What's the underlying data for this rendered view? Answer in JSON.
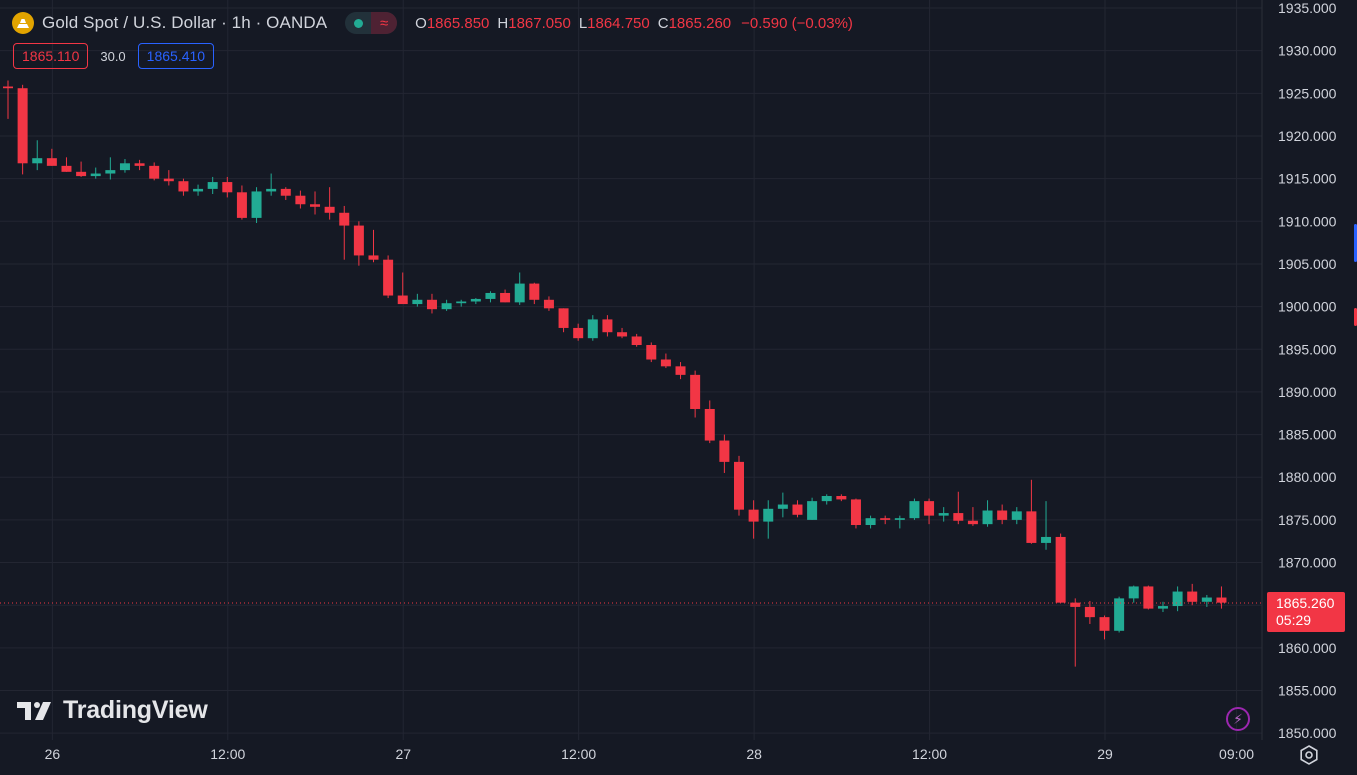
{
  "header": {
    "symbol_title": "Gold Spot / U.S. Dollar · 1h · OANDA",
    "ohlc": [
      {
        "key": "O",
        "value": "1865.850"
      },
      {
        "key": "H",
        "value": "1867.050"
      },
      {
        "key": "L",
        "value": "1864.750"
      },
      {
        "key": "C",
        "value": "1865.260"
      }
    ],
    "change": "−0.590 (−0.03%)",
    "wave_glyph": "≈"
  },
  "trade": {
    "sell_price": "1865.110",
    "spread": "30.0",
    "buy_price": "1865.410"
  },
  "last_price": {
    "price": "1865.260",
    "countdown": "05:29"
  },
  "watermark": {
    "text": "TradingView"
  },
  "colors": {
    "background": "#151924",
    "grid": "#232632",
    "up": "#22ab94",
    "down": "#f23645",
    "axis_text": "#d1d4dc",
    "buy": "#2962ff"
  },
  "icons": [
    "gold-coin-icon",
    "tradingview-logo-icon",
    "lightning-icon",
    "gear-icon"
  ],
  "chart_data": {
    "type": "candlestick",
    "x_labels": [
      {
        "label": "26",
        "index": 3
      },
      {
        "label": "12:00",
        "index": 15
      },
      {
        "label": "27",
        "index": 27
      },
      {
        "label": "12:00",
        "index": 39
      },
      {
        "label": "28",
        "index": 51
      },
      {
        "label": "12:00",
        "index": 63
      },
      {
        "label": "29",
        "index": 75
      },
      {
        "label": "09:00",
        "index": 84
      }
    ],
    "y_ticks": [
      "1850.000",
      "1855.000",
      "1860.000",
      "1865.000",
      "1870.000",
      "1875.000",
      "1880.000",
      "1885.000",
      "1890.000",
      "1895.000",
      "1900.000",
      "1905.000",
      "1910.000",
      "1915.000",
      "1920.000",
      "1925.000",
      "1930.000",
      "1935.000"
    ],
    "ylim": [
      1849,
      1936
    ],
    "grid": true,
    "candles": [
      [
        1925.8,
        1926.5,
        1922.0,
        1925.6
      ],
      [
        1925.6,
        1926.0,
        1915.5,
        1916.8
      ],
      [
        1916.8,
        1919.5,
        1916.0,
        1917.4
      ],
      [
        1917.4,
        1918.5,
        1916.5,
        1916.5
      ],
      [
        1916.5,
        1917.5,
        1915.8,
        1915.8
      ],
      [
        1915.8,
        1917.0,
        1915.2,
        1915.3
      ],
      [
        1915.3,
        1916.3,
        1915.0,
        1915.6
      ],
      [
        1915.6,
        1917.5,
        1914.9,
        1916.0
      ],
      [
        1916.0,
        1917.3,
        1915.7,
        1916.8
      ],
      [
        1916.8,
        1917.2,
        1916.0,
        1916.5
      ],
      [
        1916.5,
        1916.9,
        1914.8,
        1915.0
      ],
      [
        1915.0,
        1916.0,
        1914.2,
        1914.7
      ],
      [
        1914.7,
        1915.0,
        1913.0,
        1913.5
      ],
      [
        1913.5,
        1914.3,
        1913.0,
        1913.8
      ],
      [
        1913.8,
        1915.2,
        1913.2,
        1914.6
      ],
      [
        1914.6,
        1915.2,
        1912.8,
        1913.4
      ],
      [
        1913.4,
        1914.2,
        1910.2,
        1910.4
      ],
      [
        1910.4,
        1914.0,
        1909.8,
        1913.5
      ],
      [
        1913.5,
        1915.6,
        1913.0,
        1913.8
      ],
      [
        1913.8,
        1914.0,
        1912.5,
        1913.0
      ],
      [
        1913.0,
        1913.6,
        1911.5,
        1912.0
      ],
      [
        1912.0,
        1913.5,
        1910.8,
        1911.7
      ],
      [
        1911.7,
        1914.0,
        1910.2,
        1911.0
      ],
      [
        1911.0,
        1911.8,
        1905.5,
        1909.5
      ],
      [
        1909.5,
        1910.0,
        1904.8,
        1906.0
      ],
      [
        1906.0,
        1909.0,
        1905.2,
        1905.5
      ],
      [
        1905.5,
        1906.0,
        1901.0,
        1901.3
      ],
      [
        1901.3,
        1904.0,
        1900.8,
        1900.3
      ],
      [
        1900.3,
        1901.5,
        1900.0,
        1900.8
      ],
      [
        1900.8,
        1901.5,
        1899.2,
        1899.7
      ],
      [
        1899.7,
        1900.8,
        1899.5,
        1900.4
      ],
      [
        1900.4,
        1900.8,
        1900.0,
        1900.6
      ],
      [
        1900.6,
        1901.0,
        1900.3,
        1900.9
      ],
      [
        1900.9,
        1901.8,
        1900.5,
        1901.6
      ],
      [
        1901.6,
        1902.0,
        1900.5,
        1900.5
      ],
      [
        1900.5,
        1904.0,
        1900.2,
        1902.7
      ],
      [
        1902.7,
        1902.8,
        1900.3,
        1900.8
      ],
      [
        1900.8,
        1901.2,
        1899.5,
        1899.8
      ],
      [
        1899.8,
        1899.8,
        1897.0,
        1897.5
      ],
      [
        1897.5,
        1898.0,
        1896.0,
        1896.3
      ],
      [
        1896.3,
        1899.0,
        1896.0,
        1898.5
      ],
      [
        1898.5,
        1899.0,
        1896.5,
        1897.0
      ],
      [
        1897.0,
        1897.5,
        1896.3,
        1896.5
      ],
      [
        1896.5,
        1896.8,
        1895.3,
        1895.5
      ],
      [
        1895.5,
        1895.8,
        1893.5,
        1893.8
      ],
      [
        1893.8,
        1894.5,
        1892.8,
        1893.0
      ],
      [
        1893.0,
        1893.5,
        1891.5,
        1892.0
      ],
      [
        1892.0,
        1892.5,
        1887.0,
        1888.0
      ],
      [
        1888.0,
        1889.0,
        1884.0,
        1884.3
      ],
      [
        1884.3,
        1885.0,
        1880.5,
        1881.8
      ],
      [
        1881.8,
        1882.5,
        1875.5,
        1876.2
      ],
      [
        1876.2,
        1877.3,
        1872.8,
        1874.8
      ],
      [
        1874.8,
        1877.3,
        1872.8,
        1876.3
      ],
      [
        1876.3,
        1878.2,
        1875.3,
        1876.8
      ],
      [
        1876.8,
        1877.3,
        1875.3,
        1875.6
      ],
      [
        1875.0,
        1877.6,
        1875.0,
        1877.2
      ],
      [
        1877.2,
        1878.0,
        1876.8,
        1877.8
      ],
      [
        1877.8,
        1878.0,
        1877.2,
        1877.4
      ],
      [
        1877.4,
        1877.5,
        1874.0,
        1874.4
      ],
      [
        1874.4,
        1875.5,
        1874.0,
        1875.2
      ],
      [
        1875.2,
        1875.5,
        1874.5,
        1875.0
      ],
      [
        1875.0,
        1875.5,
        1874.0,
        1875.2
      ],
      [
        1875.2,
        1877.5,
        1875.0,
        1877.2
      ],
      [
        1877.2,
        1877.5,
        1874.5,
        1875.5
      ],
      [
        1875.5,
        1876.5,
        1874.8,
        1875.8
      ],
      [
        1875.8,
        1878.3,
        1874.5,
        1874.9
      ],
      [
        1874.9,
        1876.5,
        1874.3,
        1874.5
      ],
      [
        1874.5,
        1877.3,
        1874.2,
        1876.1
      ],
      [
        1876.1,
        1876.8,
        1874.5,
        1875.0
      ],
      [
        1875.0,
        1876.5,
        1874.5,
        1876.0
      ],
      [
        1876.0,
        1879.7,
        1872.2,
        1872.3
      ],
      [
        1872.3,
        1877.2,
        1871.5,
        1873.0
      ],
      [
        1873.0,
        1873.4,
        1865.3,
        1865.3
      ],
      [
        1865.3,
        1865.8,
        1857.8,
        1864.8
      ],
      [
        1864.8,
        1865.5,
        1862.8,
        1863.6
      ],
      [
        1863.6,
        1863.8,
        1861.0,
        1862.0
      ],
      [
        1862.0,
        1866.0,
        1861.8,
        1865.8
      ],
      [
        1865.8,
        1867.3,
        1865.3,
        1867.2
      ],
      [
        1867.2,
        1867.3,
        1864.5,
        1864.6
      ],
      [
        1864.6,
        1865.4,
        1864.2,
        1864.9
      ],
      [
        1864.9,
        1867.2,
        1864.3,
        1866.6
      ],
      [
        1866.6,
        1867.5,
        1865.0,
        1865.4
      ],
      [
        1865.4,
        1866.2,
        1864.8,
        1865.9
      ],
      [
        1865.9,
        1867.2,
        1864.6,
        1865.3
      ]
    ],
    "last_price": 1865.26
  }
}
